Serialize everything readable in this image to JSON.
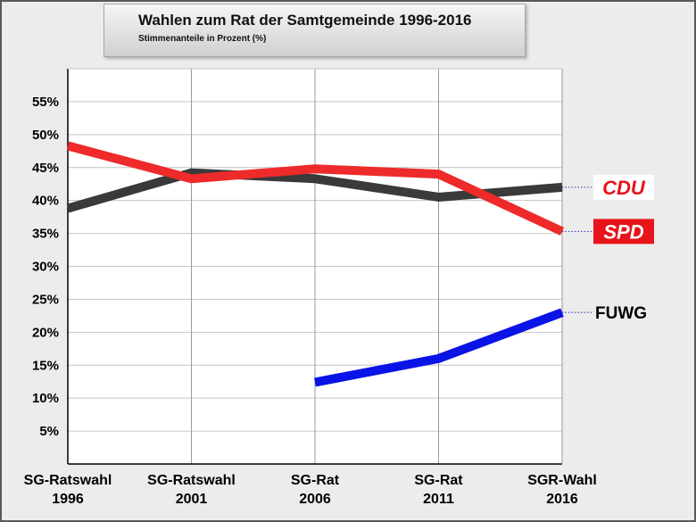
{
  "chart_data": {
    "type": "line",
    "title": "Wahlen zum Rat der Samtgemeinde 1996-2016",
    "subtitle": "Stimmenanteile in Prozent (%)",
    "categories": [
      [
        "SG-Ratswahl",
        "1996"
      ],
      [
        "SG-Ratswahl",
        "2001"
      ],
      [
        "SG-Rat",
        "2006"
      ],
      [
        "SG-Rat",
        "2011"
      ],
      [
        "SGR-Wahl",
        "2016"
      ]
    ],
    "ylim": [
      0,
      60
    ],
    "yticks": [
      "5%",
      "10%",
      "15%",
      "20%",
      "25%",
      "30%",
      "35%",
      "40%",
      "45%",
      "50%",
      "55%"
    ],
    "grid": true,
    "series": [
      {
        "name": "CDU",
        "color": "#3a3a3a",
        "values": [
          38.8,
          44.2,
          43.3,
          40.5,
          42.0
        ],
        "label_bg": "#ffffff",
        "label_color": "#e8141b"
      },
      {
        "name": "SPD",
        "color": "#ee2a2a",
        "values": [
          48.3,
          43.3,
          44.8,
          44.0,
          35.3
        ],
        "label_bg": "#e8141b",
        "label_color": "#ffffff"
      },
      {
        "name": "FUWG",
        "color": "#0a14e6",
        "values": [
          null,
          null,
          12.4,
          16.0,
          23.0
        ]
      }
    ]
  }
}
